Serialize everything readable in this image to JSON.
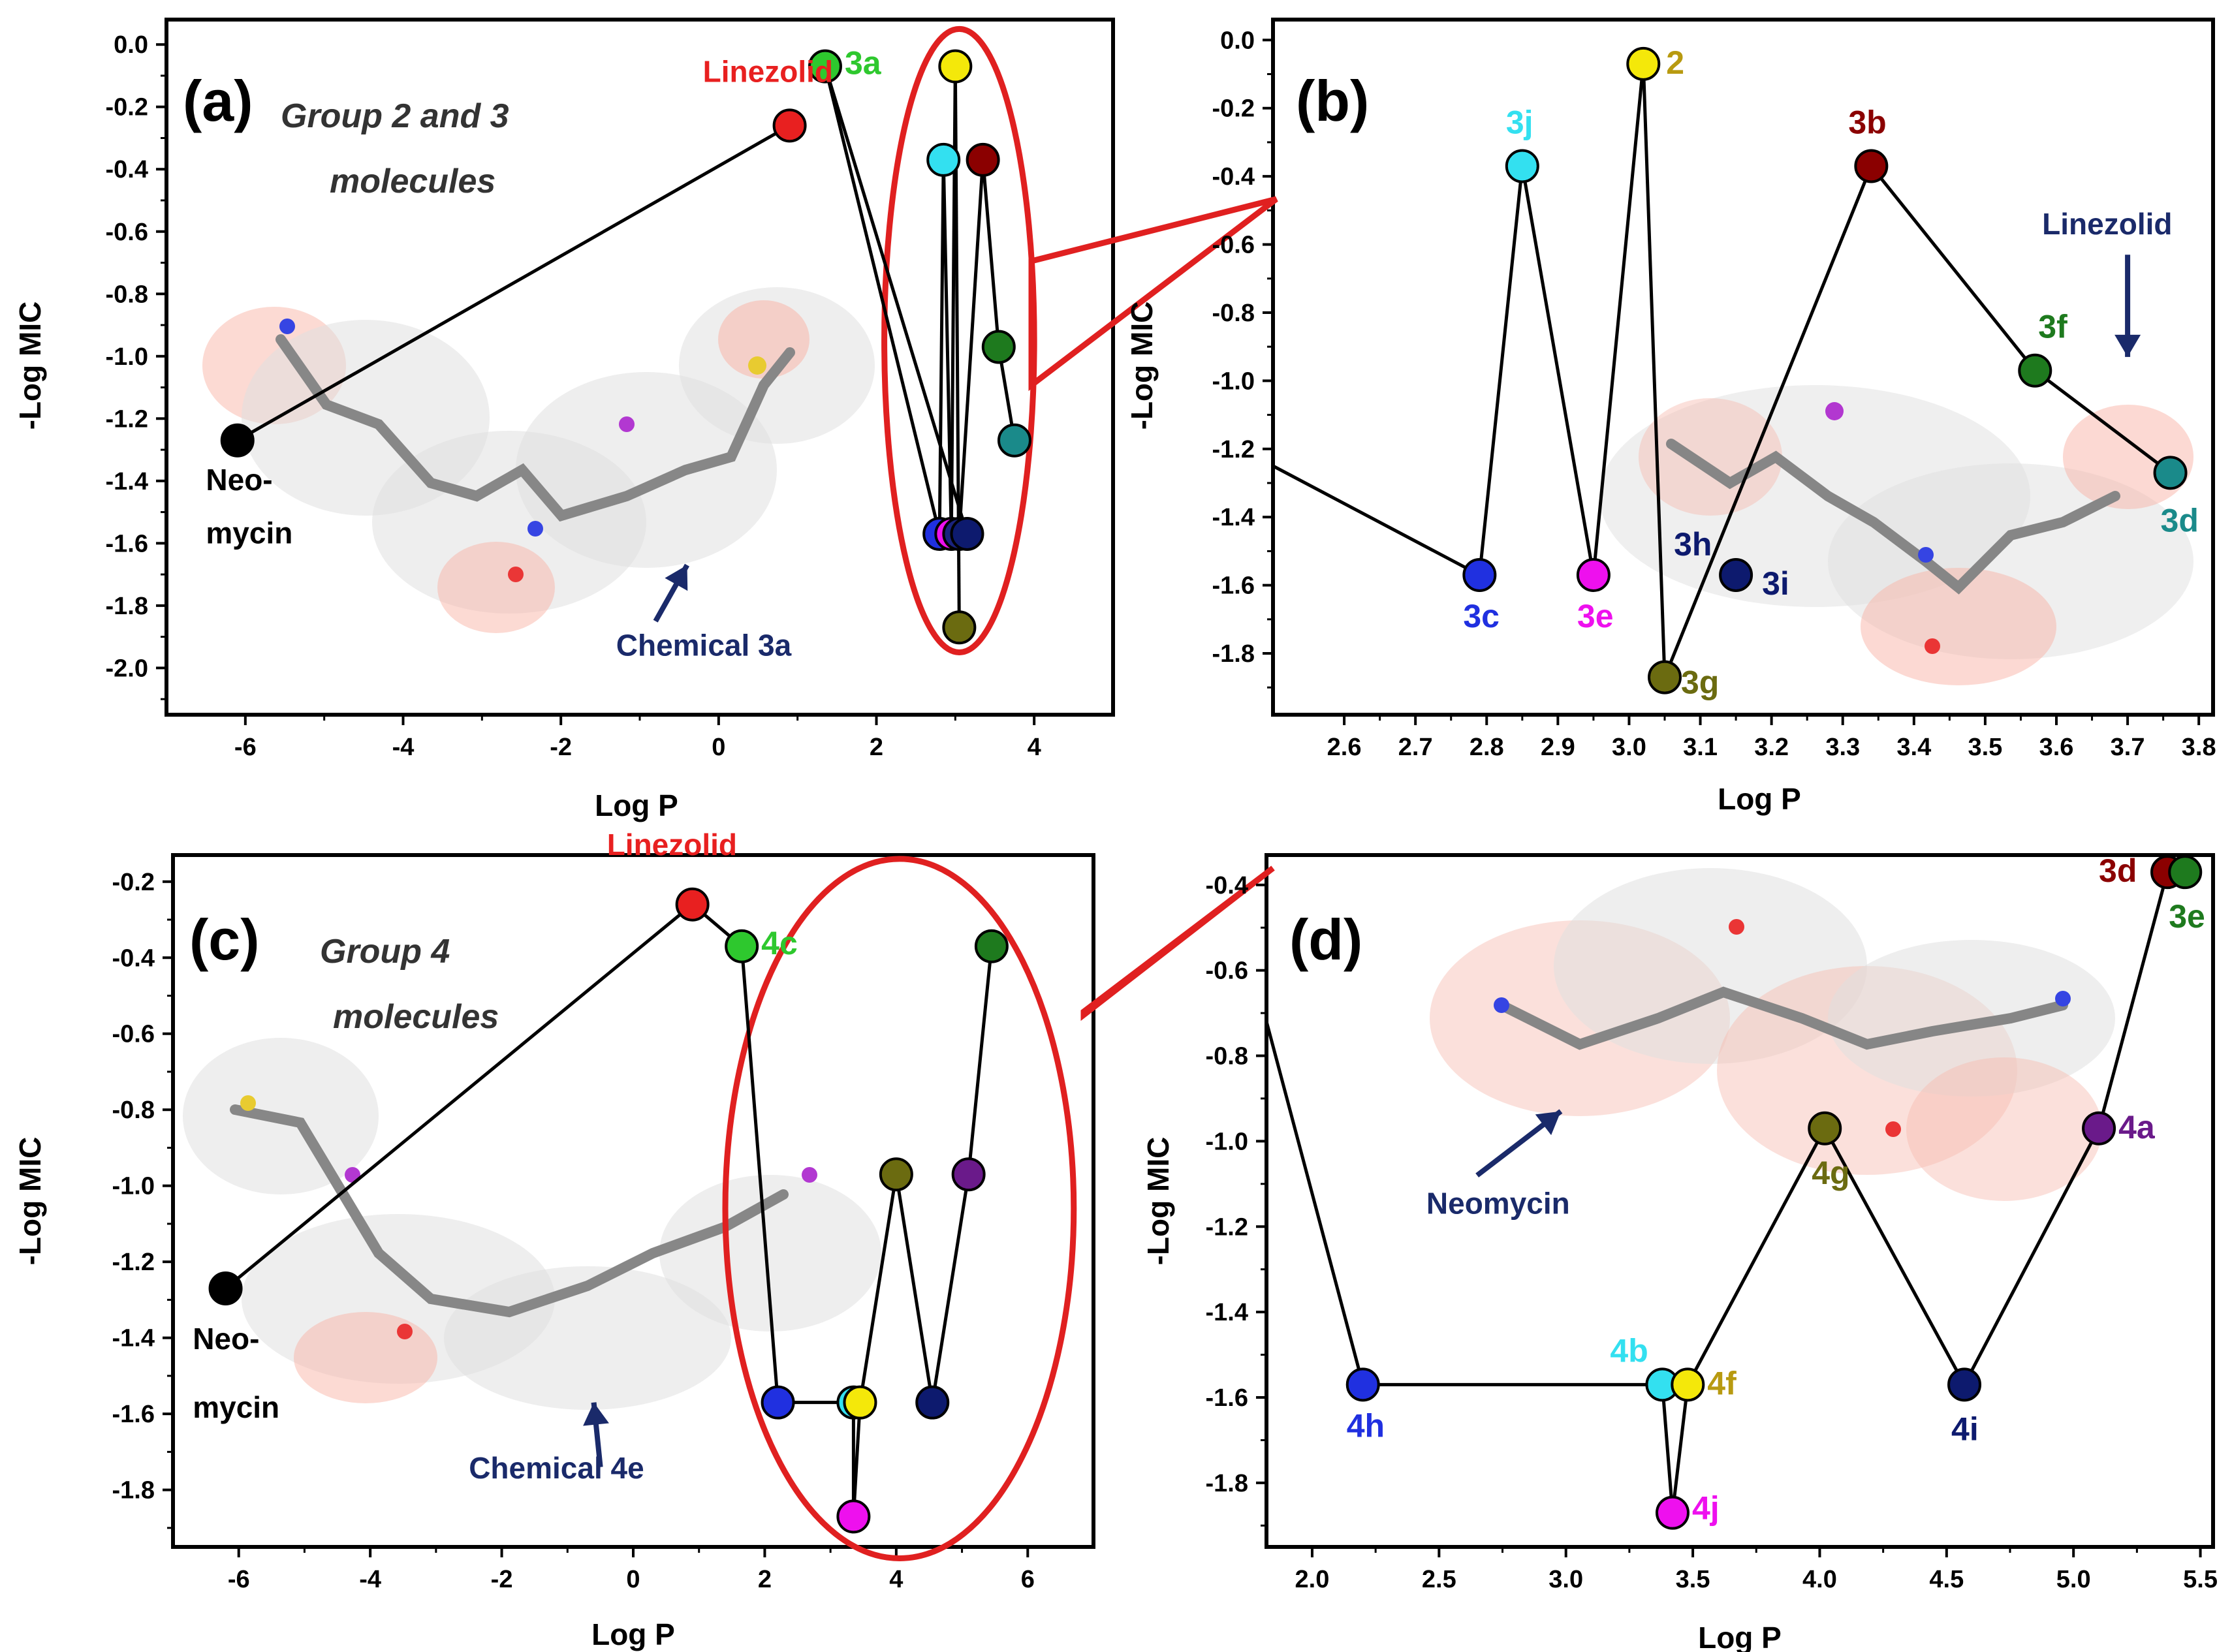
{
  "chart_data": [
    {
      "panel": "(a)",
      "type": "scatter",
      "title": "",
      "note": [
        "Group 2 and 3",
        "molecules"
      ],
      "xlabel": "Log P",
      "ylabel": "-Log MIC",
      "xlim": [
        -7,
        5
      ],
      "ylim": [
        -2.15,
        0.08
      ],
      "xticks": [
        -6,
        -4,
        -2,
        0,
        2,
        4
      ],
      "yticks": [
        0.0,
        -0.2,
        -0.4,
        -0.6,
        -0.8,
        -1.0,
        -1.2,
        -1.4,
        -1.6,
        -1.8,
        -2.0
      ],
      "points": [
        {
          "id": "neomycin",
          "x": -6.1,
          "y": -1.27,
          "color": "#000000",
          "label": "",
          "lx": -55,
          "ly": 0
        },
        {
          "id": "linezolid",
          "x": 0.9,
          "y": -0.26,
          "color": "#e82020",
          "label": "",
          "lx": 0,
          "ly": 0
        },
        {
          "id": "3a",
          "x": 1.35,
          "y": -0.07,
          "color": "#2ec82e",
          "label": "3a",
          "lx": 30,
          "ly": 12
        },
        {
          "id": "2",
          "x": 3.0,
          "y": -0.07,
          "color": "#f4e80a",
          "label": "",
          "lx": 0,
          "ly": 0
        },
        {
          "id": "3j",
          "x": 2.85,
          "y": -0.37,
          "color": "#33e0f0",
          "label": "",
          "lx": 0,
          "ly": 0
        },
        {
          "id": "3b",
          "x": 3.35,
          "y": -0.37,
          "color": "#8b0000",
          "label": "",
          "lx": 0,
          "ly": 0
        },
        {
          "id": "3f",
          "x": 3.55,
          "y": -0.97,
          "color": "#1e7a1e",
          "label": "",
          "lx": 0,
          "ly": 0
        },
        {
          "id": "3d",
          "x": 3.75,
          "y": -1.27,
          "color": "#1a8a8a",
          "label": "",
          "lx": 0,
          "ly": 0
        },
        {
          "id": "3c",
          "x": 2.8,
          "y": -1.57,
          "color": "#2030e0",
          "label": "",
          "lx": 0,
          "ly": 0
        },
        {
          "id": "3e",
          "x": 2.95,
          "y": -1.57,
          "color": "#ee10ee",
          "label": "",
          "lx": 0,
          "ly": 0
        },
        {
          "id": "3h",
          "x": 3.05,
          "y": -1.57,
          "color": "#1a237e",
          "label": "",
          "lx": 0,
          "ly": 0
        },
        {
          "id": "3i",
          "x": 3.15,
          "y": -1.57,
          "color": "#0d1a6e",
          "label": "",
          "lx": 0,
          "ly": 0
        },
        {
          "id": "3g",
          "x": 3.05,
          "y": -1.87,
          "color": "#6b6b10",
          "label": "",
          "lx": 0,
          "ly": 0
        }
      ],
      "lines": [
        [
          "neomycin",
          "linezolid"
        ],
        [
          "3a",
          "3c"
        ],
        [
          "3a",
          "3i"
        ],
        [
          "3j",
          "3c"
        ],
        [
          "3j",
          "3e"
        ],
        [
          "2",
          "3e"
        ],
        [
          "2",
          "3g"
        ],
        [
          "3b",
          "3h"
        ],
        [
          "3b",
          "3f"
        ],
        [
          "3f",
          "3d"
        ]
      ],
      "annotations": [
        {
          "text": "Linezolid",
          "x": -0.2,
          "y": -0.12,
          "color": "#e82020"
        },
        {
          "text": "Neo-",
          "x": -6.5,
          "y": -1.43,
          "color": "#000000"
        },
        {
          "text": "mycin",
          "x": -6.5,
          "y": -1.6,
          "color": "#000000"
        },
        {
          "text": "Chemical 3a",
          "x": -1.3,
          "y": -1.96,
          "color": "#1a2a6a"
        }
      ],
      "arrow": {
        "from": [
          -0.8,
          -1.85
        ],
        "to": [
          -0.4,
          -1.67
        ]
      },
      "callout": {
        "cx": 3.05,
        "cy": -0.95,
        "rx": 0.95,
        "ry": 1.0
      }
    },
    {
      "panel": "(b)",
      "type": "line",
      "title": "",
      "xlabel": "Log P",
      "ylabel": "-Log MIC",
      "xlim": [
        2.5,
        3.82
      ],
      "ylim": [
        -1.98,
        0.06
      ],
      "xticks": [
        2.6,
        2.7,
        2.8,
        2.9,
        3.0,
        3.1,
        3.2,
        3.3,
        3.4,
        3.5,
        3.6,
        3.7,
        3.8
      ],
      "yticks": [
        0.0,
        -0.2,
        -0.4,
        -0.6,
        -0.8,
        -1.0,
        -1.2,
        -1.4,
        -1.6,
        -1.8
      ],
      "points": [
        {
          "id": "3c",
          "x": 2.79,
          "y": -1.57,
          "color": "#2030e0",
          "label": "3c",
          "lx": -25,
          "ly": 80
        },
        {
          "id": "3j",
          "x": 2.85,
          "y": -0.37,
          "color": "#33e0f0",
          "label": "3j",
          "lx": -25,
          "ly": -50
        },
        {
          "id": "3e",
          "x": 2.95,
          "y": -1.57,
          "color": "#ee10ee",
          "label": "3e",
          "lx": -25,
          "ly": 80
        },
        {
          "id": "2",
          "x": 3.02,
          "y": -0.07,
          "color": "#f4e80a",
          "label": "2",
          "lx": 35,
          "ly": 15
        },
        {
          "id": "3g",
          "x": 3.05,
          "y": -1.87,
          "color": "#6b6b10",
          "label": "3g",
          "lx": 25,
          "ly": 25
        },
        {
          "id": "3h",
          "x": 3.15,
          "y": -1.57,
          "color": "#0d1a6e",
          "label": "3h",
          "lx": -95,
          "ly": -30
        },
        {
          "id": "3i",
          "x": 3.15,
          "y": -1.57,
          "color": "#0d1a6e",
          "label": "3i",
          "lx": 40,
          "ly": 30
        },
        {
          "id": "3b",
          "x": 3.34,
          "y": -0.37,
          "color": "#8b0000",
          "label": "3b",
          "lx": -35,
          "ly": -50
        },
        {
          "id": "3f",
          "x": 3.57,
          "y": -0.97,
          "color": "#1e7a1e",
          "label": "3f",
          "lx": 5,
          "ly": -50
        },
        {
          "id": "3d",
          "x": 3.76,
          "y": -1.27,
          "color": "#1a8a8a",
          "label": "3d",
          "lx": -15,
          "ly": 90
        }
      ],
      "lines": [
        [
          "edge",
          "3c"
        ],
        [
          "3c",
          "3j"
        ],
        [
          "3j",
          "3e"
        ],
        [
          "3e",
          "2"
        ],
        [
          "2",
          "3g"
        ],
        [
          "3g",
          "3b"
        ],
        [
          "3b",
          "3f"
        ],
        [
          "3f",
          "3d"
        ]
      ],
      "edge_start": {
        "x": 2.5,
        "y": -1.25
      },
      "annotations": [
        {
          "text": "Linezolid",
          "x": 3.58,
          "y": -0.57,
          "color": "#1a2a6a"
        }
      ],
      "arrow": {
        "from": [
          3.7,
          -0.63
        ],
        "to": [
          3.7,
          -0.93
        ]
      }
    },
    {
      "panel": "(c)",
      "type": "scatter",
      "title": "",
      "note": [
        "Group 4",
        "molecules"
      ],
      "xlabel": "Log P",
      "ylabel": "-Log MIC",
      "xlim": [
        -7,
        7
      ],
      "ylim": [
        -1.95,
        -0.13
      ],
      "xticks": [
        -6,
        -4,
        -2,
        0,
        2,
        4,
        6
      ],
      "yticks": [
        -0.2,
        -0.4,
        -0.6,
        -0.8,
        -1.0,
        -1.2,
        -1.4,
        -1.6,
        -1.8
      ],
      "points": [
        {
          "id": "neomycin",
          "x": -6.2,
          "y": -1.27,
          "color": "#000000",
          "label": "",
          "lx": 0,
          "ly": 0
        },
        {
          "id": "linezolid",
          "x": 0.9,
          "y": -0.26,
          "color": "#e82020",
          "label": "",
          "lx": 0,
          "ly": 0
        },
        {
          "id": "4c",
          "x": 1.65,
          "y": -0.37,
          "color": "#2ec82e",
          "label": "4c",
          "lx": 30,
          "ly": 12
        },
        {
          "id": "4h",
          "x": 2.2,
          "y": -1.57,
          "color": "#2030e0",
          "label": "",
          "lx": 0,
          "ly": 0
        },
        {
          "id": "4b",
          "x": 3.35,
          "y": -1.57,
          "color": "#33e0f0",
          "label": "",
          "lx": 0,
          "ly": 0
        },
        {
          "id": "4f",
          "x": 3.45,
          "y": -1.57,
          "color": "#f4e80a",
          "label": "",
          "lx": 0,
          "ly": 0
        },
        {
          "id": "4j",
          "x": 3.35,
          "y": -1.87,
          "color": "#ee10ee",
          "label": "",
          "lx": 0,
          "ly": 0
        },
        {
          "id": "4g",
          "x": 4.0,
          "y": -0.97,
          "color": "#6b6b10",
          "label": "",
          "lx": 0,
          "ly": 0
        },
        {
          "id": "4i",
          "x": 4.55,
          "y": -1.57,
          "color": "#0d1a6e",
          "label": "",
          "lx": 0,
          "ly": 0
        },
        {
          "id": "4a",
          "x": 5.1,
          "y": -0.97,
          "color": "#6a1a8a",
          "label": "",
          "lx": 0,
          "ly": 0
        },
        {
          "id": "3e",
          "x": 5.45,
          "y": -0.37,
          "color": "#1e7a1e",
          "label": "",
          "lx": 0,
          "ly": 0
        }
      ],
      "lines": [
        [
          "neomycin",
          "linezolid"
        ],
        [
          "linezolid",
          "4c"
        ],
        [
          "4c",
          "4h"
        ],
        [
          "4h",
          "4b"
        ],
        [
          "4b",
          "4j"
        ],
        [
          "4f",
          "4j"
        ],
        [
          "4f",
          "4g"
        ],
        [
          "4g",
          "4i"
        ],
        [
          "4i",
          "4a"
        ],
        [
          "4a",
          "3e"
        ]
      ],
      "annotations": [
        {
          "text": "Linezolid",
          "x": -0.4,
          "y": -0.13,
          "color": "#e82020"
        },
        {
          "text": "Neo-",
          "x": -6.7,
          "y": -1.43,
          "color": "#000000"
        },
        {
          "text": "mycin",
          "x": -6.7,
          "y": -1.61,
          "color": "#000000"
        },
        {
          "text": "Chemical 4e",
          "x": -2.5,
          "y": -1.77,
          "color": "#1a2a6a"
        }
      ],
      "arrow": {
        "from": [
          -0.5,
          -1.74
        ],
        "to": [
          -0.6,
          -1.57
        ]
      },
      "callout": {
        "cx": 4.05,
        "cy": -1.06,
        "rx": 2.65,
        "ry": 0.92
      }
    },
    {
      "panel": "(d)",
      "type": "line",
      "title": "",
      "xlabel": "Log P",
      "ylabel": "-Log MIC",
      "xlim": [
        1.82,
        5.55
      ],
      "ylim": [
        -1.95,
        -0.33
      ],
      "xticks": [
        2.0,
        2.5,
        3.0,
        3.5,
        4.0,
        4.5,
        5.0,
        5.5
      ],
      "yticks": [
        -0.4,
        -0.6,
        -0.8,
        -1.0,
        -1.2,
        -1.4,
        -1.6,
        -1.8
      ],
      "points": [
        {
          "id": "4h",
          "x": 2.2,
          "y": -1.57,
          "color": "#2030e0",
          "label": "4h",
          "lx": -25,
          "ly": 80
        },
        {
          "id": "4b",
          "x": 3.38,
          "y": -1.57,
          "color": "#33e0f0",
          "label": "4b",
          "lx": -80,
          "ly": -35
        },
        {
          "id": "4f",
          "x": 3.48,
          "y": -1.57,
          "color": "#f4e80a",
          "label": "4f",
          "lx": 30,
          "ly": 15
        },
        {
          "id": "4j",
          "x": 3.42,
          "y": -1.87,
          "color": "#ee10ee",
          "label": "4j",
          "lx": 30,
          "ly": 10
        },
        {
          "id": "4g",
          "x": 4.02,
          "y": -0.97,
          "color": "#6b6b10",
          "label": "4g",
          "lx": -20,
          "ly": 85
        },
        {
          "id": "4i",
          "x": 4.57,
          "y": -1.57,
          "color": "#0d1a6e",
          "label": "4i",
          "lx": -20,
          "ly": 85
        },
        {
          "id": "4a",
          "x": 5.1,
          "y": -0.97,
          "color": "#6a1a8a",
          "label": "4a",
          "lx": 30,
          "ly": 15
        },
        {
          "id": "3d",
          "x": 5.37,
          "y": -0.37,
          "color": "#8b0000",
          "label": "3d",
          "lx": -105,
          "ly": 15
        },
        {
          "id": "3e",
          "x": 5.44,
          "y": -0.37,
          "color": "#1e7a1e",
          "label": "3e",
          "lx": -25,
          "ly": 85
        }
      ],
      "lines": [
        [
          "edge",
          "4h"
        ],
        [
          "4h",
          "4b"
        ],
        [
          "4b",
          "4j"
        ],
        [
          "4f",
          "4j"
        ],
        [
          "4f",
          "4g"
        ],
        [
          "4g",
          "4i"
        ],
        [
          "4i",
          "4a"
        ],
        [
          "4a",
          "3d"
        ]
      ],
      "edge_start": {
        "x": 1.82,
        "y": -0.72
      },
      "annotations": [
        {
          "text": "Neomycin",
          "x": 2.45,
          "y": -1.17,
          "color": "#1a2a6a"
        }
      ],
      "arrow": {
        "from": [
          2.65,
          -1.08
        ],
        "to": [
          2.98,
          -0.93
        ]
      }
    }
  ]
}
